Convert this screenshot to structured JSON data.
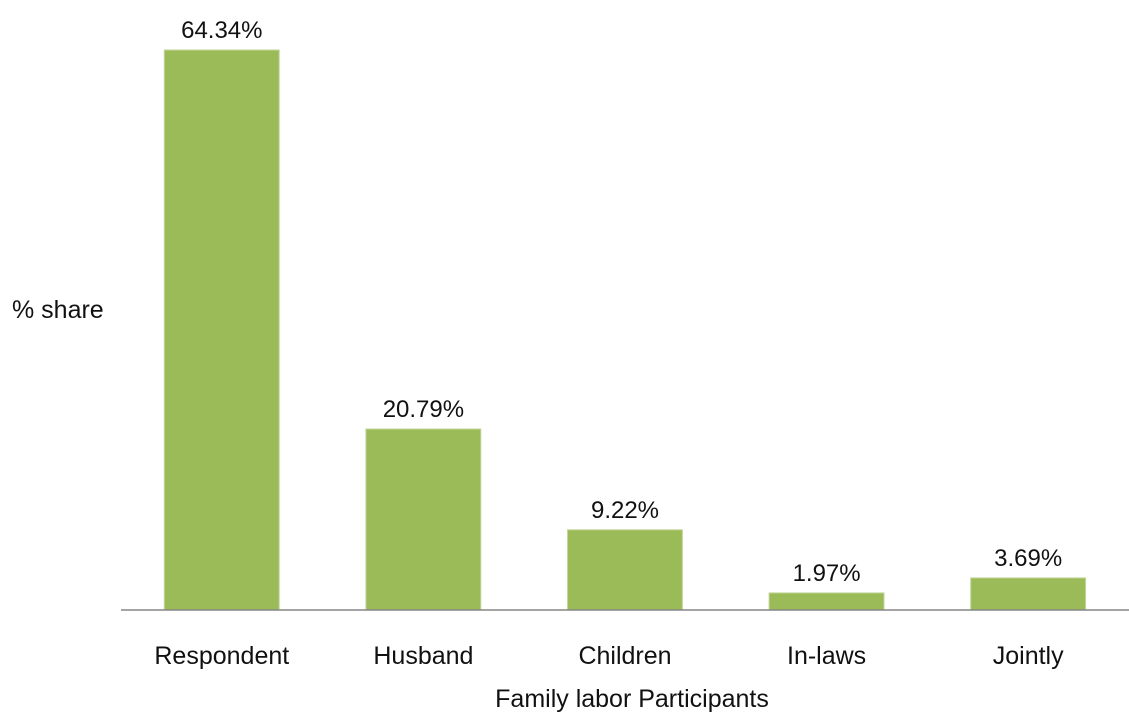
{
  "chart_data": {
    "type": "bar",
    "title": "",
    "xlabel": "Family labor Participants",
    "ylabel": "% share",
    "categories": [
      "Respondent",
      "Husband",
      "Children",
      "In-laws",
      "Jointly"
    ],
    "values": [
      64.34,
      20.79,
      9.22,
      1.97,
      3.69
    ],
    "data_labels": [
      "64.34%",
      "20.79%",
      "9.22%",
      "1.97%",
      "3.69%"
    ],
    "ylim": [
      0,
      64.34
    ],
    "grid": false,
    "legend": "none",
    "colors": {
      "bar": "#9bbb59",
      "bar_edge": "#c3d69b",
      "axis": "#868686"
    }
  }
}
